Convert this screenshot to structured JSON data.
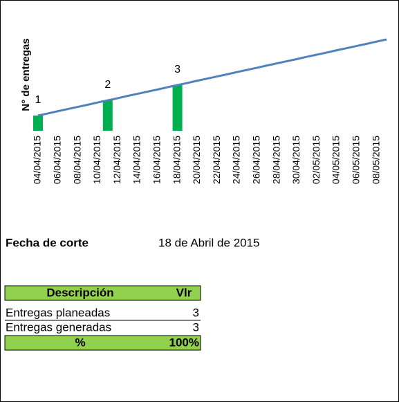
{
  "chart_data": {
    "type": "bar_line",
    "y_label": "N° de entregas",
    "categories": [
      "04/04/2015",
      null,
      "06/04/2015",
      null,
      "08/04/2015",
      null,
      "10/04/2015",
      null,
      "12/04/2015",
      null,
      "14/04/2015",
      null,
      "16/04/2015",
      null,
      "18/04/2015",
      null,
      "20/04/2015",
      null,
      "22/04/2015",
      null,
      "24/04/2015",
      null,
      "26/04/2015",
      null,
      "28/04/2015",
      null,
      "30/04/2015",
      null,
      "02/05/2015",
      null,
      "04/05/2015",
      null,
      "06/05/2015",
      null,
      "08/05/2015",
      null
    ],
    "series": [
      {
        "type": "bar",
        "color": "#00b050",
        "values": [
          1,
          null,
          null,
          null,
          null,
          null,
          null,
          2,
          null,
          null,
          null,
          null,
          null,
          null,
          3,
          null,
          null,
          null,
          null,
          null,
          null,
          null,
          null,
          null,
          null,
          null,
          null,
          null,
          null,
          null,
          null,
          null,
          null,
          null,
          null,
          null
        ]
      },
      {
        "type": "line",
        "color": "#4f81bd",
        "values": [
          1,
          1.14,
          1.29,
          1.43,
          1.57,
          1.71,
          1.86,
          2,
          2.14,
          2.29,
          2.43,
          2.57,
          2.71,
          2.86,
          3,
          3.14,
          3.29,
          3.43,
          3.57,
          3.71,
          3.86,
          4,
          4.14,
          4.29,
          4.43,
          4.57,
          4.71,
          4.86,
          5,
          5.14,
          5.29,
          5.43,
          5.57,
          5.71,
          5.86,
          6
        ]
      }
    ],
    "ylim": [
      0,
      7.5
    ],
    "grid": false
  },
  "cutoff": {
    "label": "Fecha de corte",
    "value": "18 de Abril de 2015"
  },
  "table": {
    "header": [
      "Descripción",
      "Vlr"
    ],
    "rows": [
      [
        "Entregas planeadas",
        "3"
      ],
      [
        "Entregas generadas",
        "3"
      ]
    ],
    "footer": [
      "%",
      "100%"
    ]
  }
}
